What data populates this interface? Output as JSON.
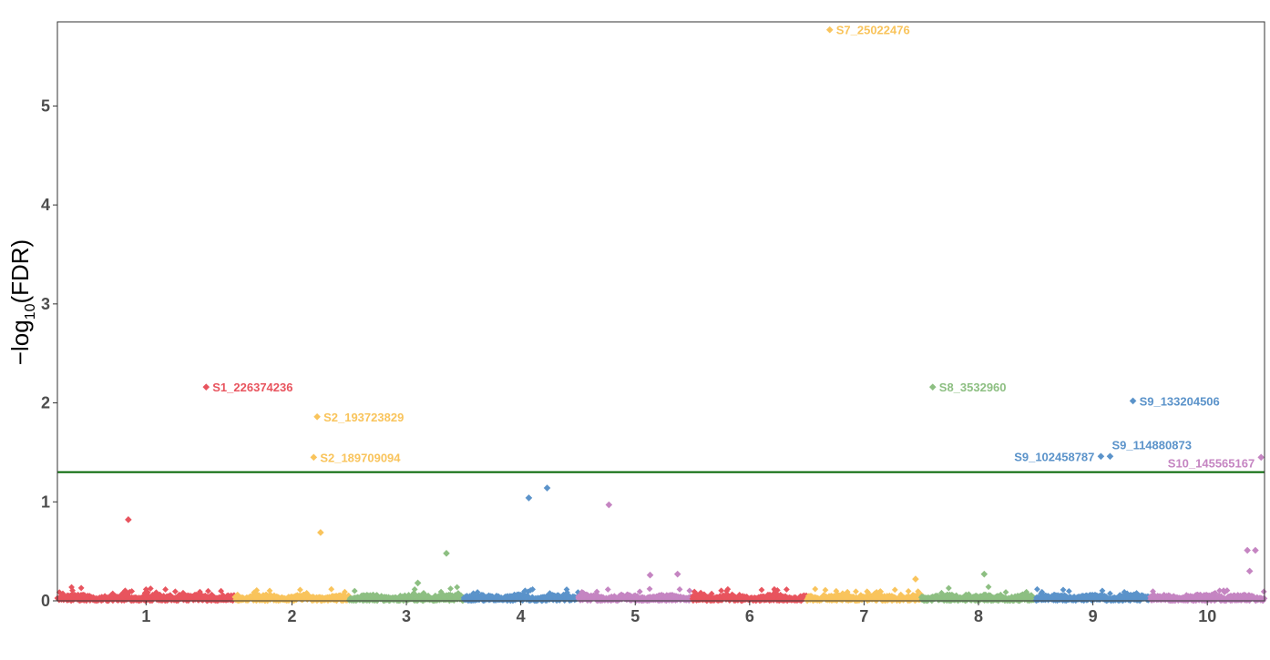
{
  "chart_data": {
    "type": "scatter",
    "subtype": "manhattan",
    "title": "",
    "ylabel": {
      "prefix": "−log",
      "subscript": "10",
      "suffix": "(FDR)"
    },
    "xlabel": "",
    "ylim": [
      0,
      5.85
    ],
    "yticks": [
      "0",
      "1",
      "2",
      "3",
      "4",
      "5"
    ],
    "grid": false,
    "legend": "none",
    "colors": {
      "odd_red": "#E8545E",
      "yellow": "#F9C45C",
      "green": "#8DBF82",
      "blue": "#5B93CA",
      "purple": "#C585C2",
      "threshold": "#006400",
      "axis": "#333333"
    },
    "chromosomes": [
      {
        "name": "1",
        "color": "#E8545E",
        "span": [
          0.0,
          1.55
        ]
      },
      {
        "name": "2",
        "color": "#F9C45C",
        "span": [
          1.55,
          2.55
        ]
      },
      {
        "name": "3",
        "color": "#8DBF82",
        "span": [
          2.55,
          3.55
        ]
      },
      {
        "name": "4",
        "color": "#5B93CA",
        "span": [
          3.55,
          4.55
        ]
      },
      {
        "name": "5",
        "color": "#C585C2",
        "span": [
          4.55,
          5.55
        ]
      },
      {
        "name": "6",
        "color": "#E8545E",
        "span": [
          5.55,
          6.55
        ]
      },
      {
        "name": "7",
        "color": "#F9C45C",
        "span": [
          6.55,
          7.55
        ]
      },
      {
        "name": "8",
        "color": "#8DBF82",
        "span": [
          7.55,
          8.55
        ]
      },
      {
        "name": "9",
        "color": "#5B93CA",
        "span": [
          8.55,
          9.55
        ]
      },
      {
        "name": "10",
        "color": "#C585C2",
        "span": [
          9.55,
          10.55
        ]
      }
    ],
    "threshold": 1.3,
    "highlighted_snps": [
      {
        "label": "S1_226374236",
        "chr": "1",
        "pos": 1.3,
        "y": 2.16,
        "color": "#E8545E",
        "side": "right"
      },
      {
        "label": "S2_193723829",
        "chr": "2",
        "pos": 2.27,
        "y": 1.86,
        "color": "#F9C45C",
        "side": "right"
      },
      {
        "label": "S2_189709094",
        "chr": "2",
        "pos": 2.24,
        "y": 1.45,
        "color": "#F9C45C",
        "side": "right"
      },
      {
        "label": "S7_25022476",
        "chr": "7",
        "pos": 6.75,
        "y": 5.77,
        "color": "#F9C45C",
        "side": "right"
      },
      {
        "label": "S8_3532960",
        "chr": "8",
        "pos": 7.65,
        "y": 2.16,
        "color": "#8DBF82",
        "side": "right"
      },
      {
        "label": "S9_133204506",
        "chr": "9",
        "pos": 9.4,
        "y": 2.02,
        "color": "#5B93CA",
        "side": "right"
      },
      {
        "label": "S9_114880873",
        "chr": "9",
        "pos": 9.2,
        "y": 1.46,
        "color": "#5B93CA",
        "side": "above-right"
      },
      {
        "label": "S9_102458787",
        "chr": "9",
        "pos": 9.12,
        "y": 1.46,
        "color": "#5B93CA",
        "side": "left"
      },
      {
        "label": "S10_145565167",
        "chr": "10",
        "pos": 10.52,
        "y": 1.45,
        "color": "#C585C2",
        "side": "left-below"
      }
    ],
    "other_points": [
      {
        "chr": "1",
        "pos": 0.62,
        "y": 0.82
      },
      {
        "chr": "2",
        "pos": 2.3,
        "y": 0.69
      },
      {
        "chr": "3",
        "pos": 3.4,
        "y": 0.48
      },
      {
        "chr": "4",
        "pos": 4.12,
        "y": 1.04
      },
      {
        "chr": "4",
        "pos": 4.28,
        "y": 1.14
      },
      {
        "chr": "5",
        "pos": 4.82,
        "y": 0.97
      },
      {
        "chr": "10",
        "pos": 10.4,
        "y": 0.51
      },
      {
        "chr": "10",
        "pos": 10.47,
        "y": 0.51
      },
      {
        "chr": "10",
        "pos": 10.42,
        "y": 0.3
      },
      {
        "chr": "5",
        "pos": 5.18,
        "y": 0.26
      },
      {
        "chr": "5",
        "pos": 5.42,
        "y": 0.27
      },
      {
        "chr": "8",
        "pos": 8.1,
        "y": 0.27
      },
      {
        "chr": "3",
        "pos": 3.15,
        "y": 0.18
      },
      {
        "chr": "7",
        "pos": 7.5,
        "y": 0.22
      }
    ]
  }
}
